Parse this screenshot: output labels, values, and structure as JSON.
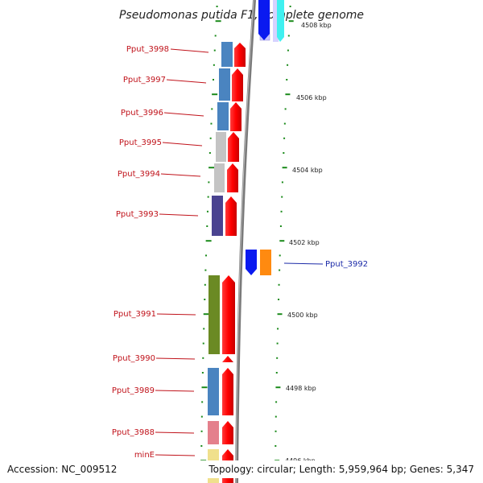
{
  "title": "Pseudomonas putida F1, complete genome",
  "footer": {
    "accession": "Accession: NC_009512",
    "topology": "Topology: circular; Length: 5,959,964 bp; Genes: 5,347"
  },
  "kbp_labels": [
    "4508 kbp",
    "4506 kbp",
    "4504 kbp",
    "4502 kbp",
    "4500 kbp",
    "4498 kbp",
    "4496 kbp"
  ],
  "genes": [
    {
      "id": "Pput_3998",
      "side": "left"
    },
    {
      "id": "Pput_3997",
      "side": "left"
    },
    {
      "id": "Pput_3996",
      "side": "left"
    },
    {
      "id": "Pput_3995",
      "side": "left"
    },
    {
      "id": "Pput_3994",
      "side": "left"
    },
    {
      "id": "Pput_3993",
      "side": "left"
    },
    {
      "id": "Pput_3992",
      "side": "right"
    },
    {
      "id": "Pput_3991",
      "side": "left"
    },
    {
      "id": "Pput_3990",
      "side": "left"
    },
    {
      "id": "Pput_3989",
      "side": "left"
    },
    {
      "id": "Pput_3988",
      "side": "left"
    },
    {
      "id": "minE",
      "side": "left"
    }
  ],
  "colors": {
    "forward_strand": "#f00000",
    "reverse_strand": "#0a1af0",
    "cog_blue": "#4a84c0",
    "cog_grey": "#c4c4c4",
    "cog_purple": "#4a4390",
    "cog_olive": "#6b8a24",
    "cog_pink": "#e4808c",
    "cog_yellow": "#f0e08c",
    "cog_orange": "#ff8a10",
    "cog_lavender": "#c8c4ff",
    "cog_cyan": "#40f0f0",
    "backbone": "#808080",
    "tick": "#1a8a1a"
  }
}
